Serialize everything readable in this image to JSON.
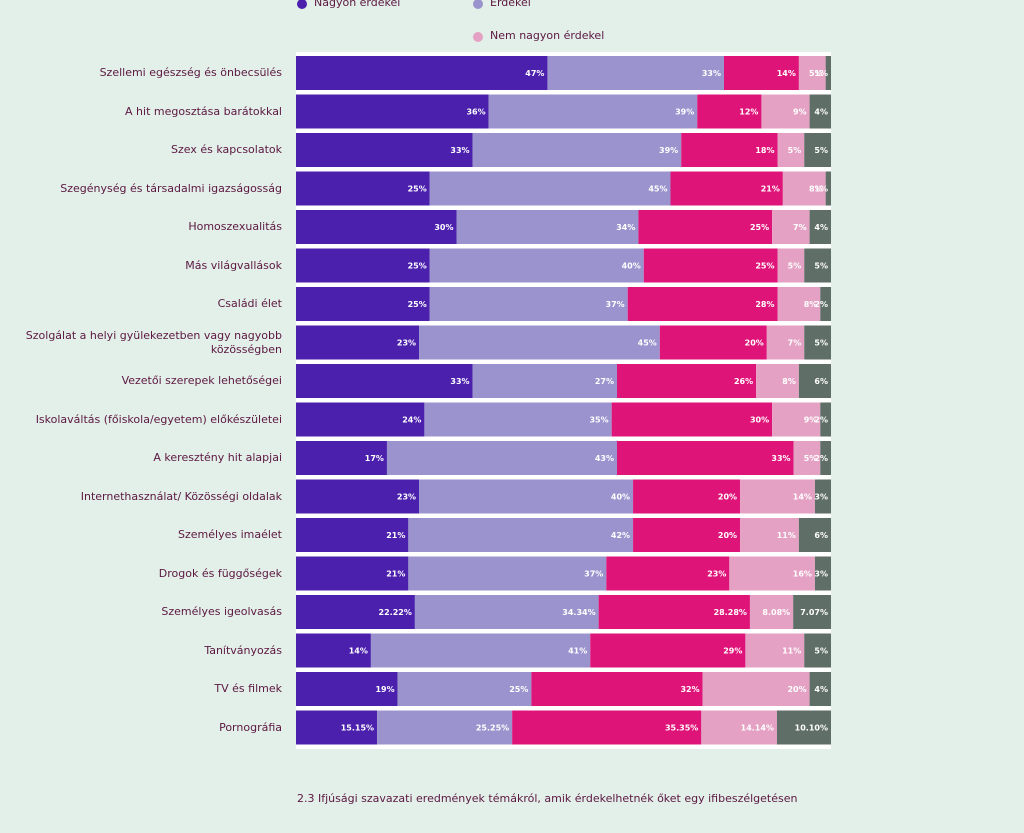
{
  "chart_data": {
    "type": "stacked_bar_horizontal",
    "categories": [
      "Szellemi egészség és önbecsülés",
      "A hit megosztása barátokkal",
      "Szex és kapcsolatok",
      "Szegénység és társadalmi igazságosság",
      "Homoszexualitás",
      "Más világvallások",
      "Családi élet",
      "Szolgálat a helyi gyülekezetben vagy nagyobb közösségben",
      "Vezetői szerepek lehetőségei",
      "Iskolaváltás (főiskola/egyetem) előkészületei",
      "A keresztény hit alapjai",
      "Internethasználat/ Közösségi oldalak",
      "Személyes imaélet",
      "Drogok és függőségek",
      "Személyes igeolvasás",
      "Tanítványozás",
      "TV és filmek",
      "Pornográfia"
    ],
    "series": [
      {
        "name": "Nagyon érdekel",
        "color": "#4b20ad",
        "values": [
          47,
          36,
          33,
          25,
          30,
          25,
          25,
          23,
          33,
          24,
          17,
          23,
          21,
          21,
          22.22,
          14,
          19,
          15.15
        ],
        "value_labels": [
          "47%",
          "36%",
          "33%",
          "25%",
          "30%",
          "25%",
          "25%",
          "23%",
          "33%",
          "24%",
          "17%",
          "23%",
          "21%",
          "21%",
          "22.22%",
          "14%",
          "19%",
          "15.15%"
        ]
      },
      {
        "name": "Érdekel",
        "color": "#9b93cd",
        "values": [
          33,
          39,
          39,
          45,
          34,
          40,
          37,
          45,
          27,
          35,
          43,
          40,
          42,
          37,
          34.34,
          41,
          25,
          25.25
        ],
        "value_labels": [
          "33%",
          "39%",
          "39%",
          "45%",
          "34%",
          "40%",
          "37%",
          "45%",
          "27%",
          "35%",
          "43%",
          "40%",
          "42%",
          "37%",
          "34.34%",
          "41%",
          "25%",
          "25.25%"
        ]
      },
      {
        "color": "#df1479",
        "values": [
          14,
          12,
          18,
          21,
          25,
          25,
          28,
          20,
          26,
          30,
          33,
          20,
          20,
          23,
          28.28,
          29,
          32,
          35.35
        ],
        "value_labels": [
          "14%",
          "12%",
          "18%",
          "21%",
          "25%",
          "25%",
          "28%",
          "20%",
          "26%",
          "30%",
          "33%",
          "20%",
          "20%",
          "23%",
          "28.28%",
          "29%",
          "32%",
          "35.35%"
        ]
      },
      {
        "name": "Nem nagyon érdekel",
        "color": "#e4a1c3",
        "values": [
          5,
          9,
          5,
          8,
          7,
          5,
          8,
          7,
          8,
          9,
          5,
          14,
          11,
          16,
          8.08,
          11,
          20,
          14.14
        ],
        "value_labels": [
          "5%",
          "9%",
          "5%",
          "8%",
          "7%",
          "5%",
          "8%",
          "7%",
          "8%",
          "9%",
          "5%",
          "14%",
          "11%",
          "16%",
          "8.08%",
          "11%",
          "20%",
          "14.14%"
        ]
      },
      {
        "color": "#5f6e66",
        "values": [
          1,
          4,
          5,
          1,
          4,
          5,
          2,
          5,
          6,
          2,
          2,
          3,
          6,
          3,
          7.07,
          5,
          4,
          10.1
        ],
        "value_labels": [
          "1%",
          "4%",
          "5%",
          "1%",
          "4%",
          "5%",
          "2%",
          "5%",
          "6%",
          "2%",
          "2%",
          "3%",
          "6%",
          "3%",
          "7.07%",
          "5%",
          "4%",
          "10.10%"
        ]
      }
    ],
    "caption": "2.3 Ifjúsági szavazati eredmények témákról, amik érdekelhetnék őket egy ifibeszélgetésen"
  }
}
